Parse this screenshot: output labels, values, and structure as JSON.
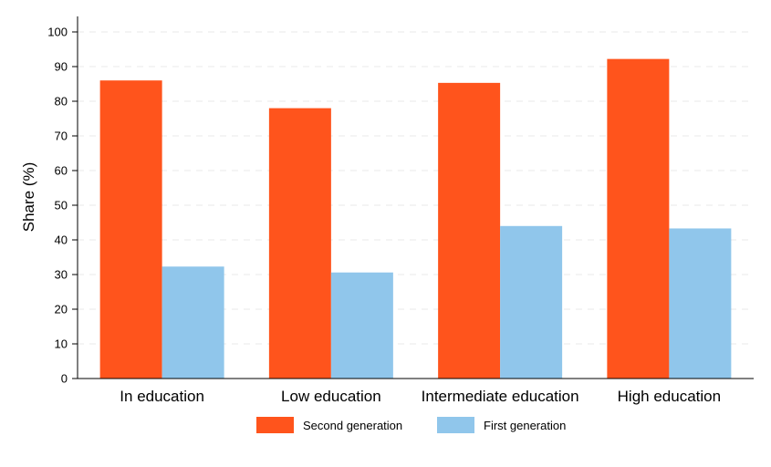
{
  "chart_data": {
    "type": "bar",
    "title": "",
    "xlabel": "",
    "ylabel": "Share (%)",
    "ylim": [
      0,
      100
    ],
    "yticks": [
      0,
      10,
      20,
      30,
      40,
      50,
      60,
      70,
      80,
      90,
      100
    ],
    "grid": true,
    "legend_position": "bottom",
    "categories": [
      "In education",
      "Low education",
      "Intermediate education",
      "High education"
    ],
    "series": [
      {
        "name": "Second generation",
        "color": "#ff541c",
        "values": [
          86,
          78,
          85.3,
          92.2
        ]
      },
      {
        "name": "First generation",
        "color": "#90c6eb",
        "values": [
          32.3,
          30.6,
          44,
          43.3
        ]
      }
    ]
  }
}
